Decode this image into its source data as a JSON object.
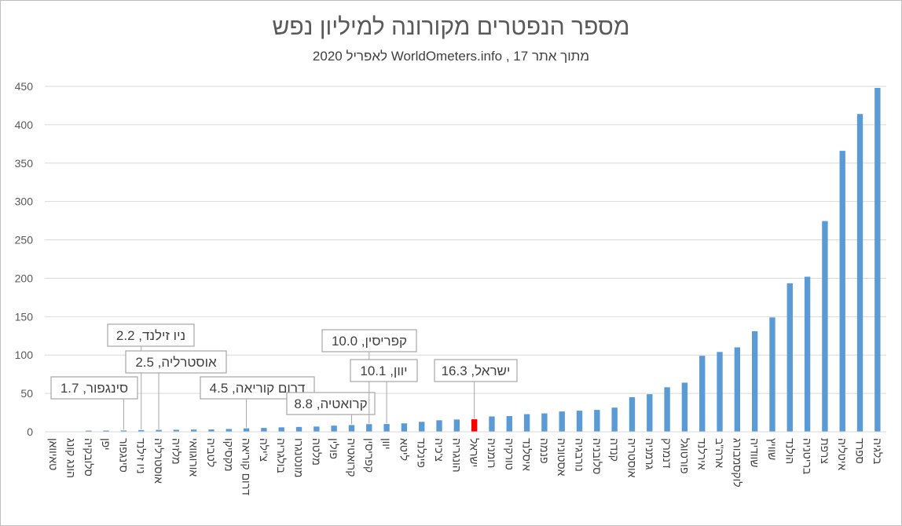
{
  "title": "מספר הנפטרים מקורונה למיליון נפש",
  "subtitle": "מתוך אתר WorldOmeters.info , 17 לאפריל 2020",
  "colors": {
    "bar": "#5b9bd5",
    "highlight": "#ff0000",
    "grid": "#d9d9d9",
    "callout_border": "#a6a6a6"
  },
  "chart_data": {
    "type": "bar",
    "title": "מספר הנפטרים מקורונה למיליון נפש",
    "ylim": [
      0,
      450
    ],
    "yticks": [
      0,
      50,
      100,
      150,
      200,
      250,
      300,
      350,
      400,
      450
    ],
    "grid": true,
    "highlight": "ישראל",
    "categories": [
      "טאיוואן",
      "הונג קונג",
      "סלובקיה",
      "יפן",
      "סינגפור",
      "ניו זילנד",
      "אוסטרליה",
      "מלזיה",
      "אורוגוואי",
      "לטביה",
      "מקסיקו",
      "דרום קוריאה",
      "צ'ילה",
      "בולגריה",
      "מונטנגרו",
      "מלטה",
      "פולין",
      "קרואטיה",
      "קפריסין",
      "יוון",
      "ליטא",
      "פינלנד",
      "צ'כיה",
      "הונגריה",
      "ישראל",
      "רומניה",
      "טורקיה",
      "איסלנד",
      "פנמה",
      "אסטוניה",
      "נורבגיה",
      "סלובניה",
      "קנדה",
      "אוסטריה",
      "גרמניה",
      "דנמרק",
      "פורטוגל",
      "אירלנד",
      "ארה\"ב",
      "לוקסמבורג",
      "שוודיה",
      "שוויץ",
      "הולנד",
      "בריטניה",
      "צרפת",
      "איטליה",
      "ספרד",
      "בלגיה"
    ],
    "values": [
      0.3,
      0.5,
      1.5,
      1.6,
      1.7,
      2.2,
      2.5,
      2.6,
      2.9,
      3.0,
      3.7,
      4.5,
      5.0,
      5.8,
      6.3,
      6.8,
      8.0,
      8.8,
      10.0,
      10.1,
      11.0,
      13.0,
      15.0,
      16.0,
      16.3,
      20.0,
      20.5,
      23.0,
      24.0,
      26.5,
      27.5,
      28.5,
      31.5,
      45.0,
      49.0,
      58.0,
      64.0,
      99.0,
      104.0,
      110.0,
      131.0,
      149.0,
      193.5,
      202.0,
      274.5,
      366.0,
      414.0,
      448.0
    ],
    "annotations": [
      {
        "category": "סינגפור",
        "text": "סינגפור, 1.7"
      },
      {
        "category": "ניו זילנד",
        "text": "ניו זילנד, 2.2"
      },
      {
        "category": "אוסטרליה",
        "text": "אוסטרליה, 2.5"
      },
      {
        "category": "דרום קוריאה",
        "text": "דרום קוריאה, 4.5"
      },
      {
        "category": "קרואטיה",
        "text": "קרואטיה, 8.8"
      },
      {
        "category": "קפריסין",
        "text": "קפריסין, 10.0"
      },
      {
        "category": "יוון",
        "text": "יוון, 10.1"
      },
      {
        "category": "ישראל",
        "text": "ישראל, 16.3"
      }
    ]
  }
}
